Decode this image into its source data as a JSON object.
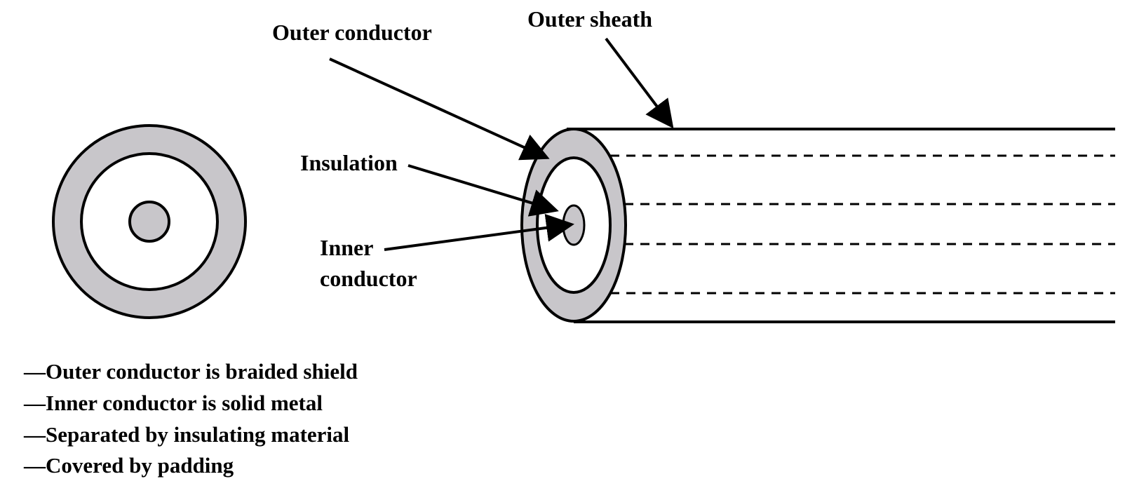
{
  "labels": {
    "outer_conductor": "Outer conductor",
    "outer_sheath": "Outer sheath",
    "insulation": "Insulation",
    "inner_conductor_line1": "Inner",
    "inner_conductor_line2": "conductor"
  },
  "notes": [
    "—Outer conductor is braided shield",
    "—Inner conductor is solid metal",
    "—Separated by insulating material",
    "—Covered by padding"
  ],
  "colors": {
    "conductor_fill": "#c8c6ca",
    "line": "#000000",
    "background": "#ffffff"
  }
}
